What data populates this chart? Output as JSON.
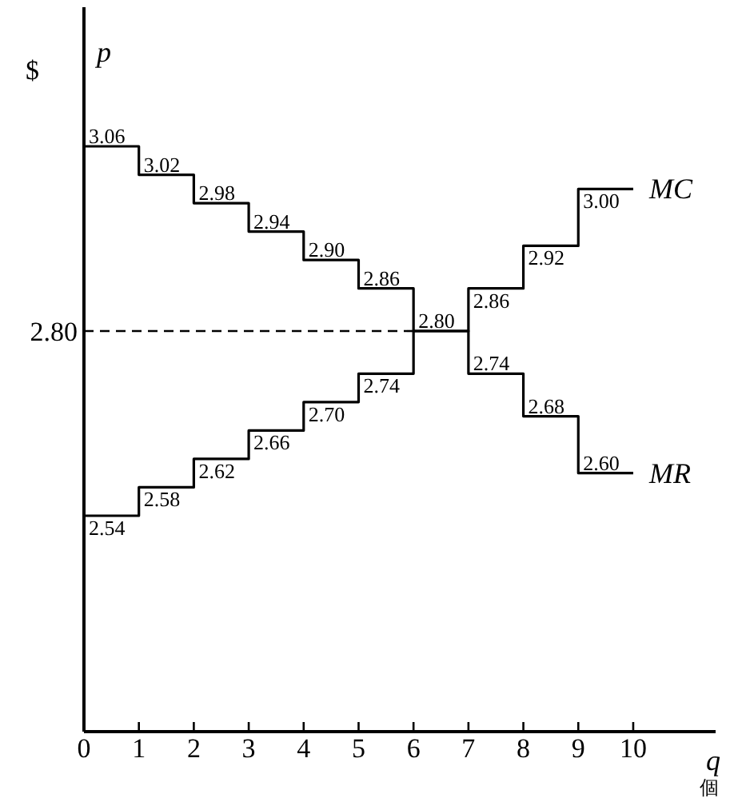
{
  "chart_data": {
    "type": "step",
    "xlabel": "q",
    "ylabel": "p",
    "x": [
      0,
      1,
      2,
      3,
      4,
      5,
      6,
      7,
      8,
      9,
      10
    ],
    "series": [
      {
        "name": "MR",
        "color": "#000000",
        "values": [
          3.06,
          3.02,
          2.98,
          2.94,
          2.9,
          2.86,
          2.8,
          2.74,
          2.68,
          2.6,
          2.6
        ],
        "value_labels": [
          "3.06",
          "3.02",
          "2.98",
          "2.94",
          "2.90",
          "2.86",
          "2.80",
          "2.74",
          "2.68",
          "2.60",
          null
        ]
      },
      {
        "name": "MC",
        "color": "#000000",
        "values": [
          2.54,
          2.58,
          2.62,
          2.66,
          2.7,
          2.74,
          2.8,
          2.86,
          2.92,
          3.0,
          3.0
        ],
        "value_labels": [
          "2.54",
          "2.58",
          "2.62",
          "2.66",
          "2.70",
          "2.74",
          null,
          "2.86",
          "2.92",
          "3.00",
          null
        ]
      }
    ],
    "xlim": [
      0,
      11.5
    ],
    "xticks": [
      0,
      1,
      2,
      3,
      4,
      5,
      6,
      7,
      8,
      9,
      10
    ],
    "ref_lines": [
      {
        "axis": "y",
        "value": 2.8,
        "label": "2.80",
        "line_style": "dashed"
      }
    ],
    "annotations": [
      "$",
      "個"
    ],
    "grid": false
  }
}
